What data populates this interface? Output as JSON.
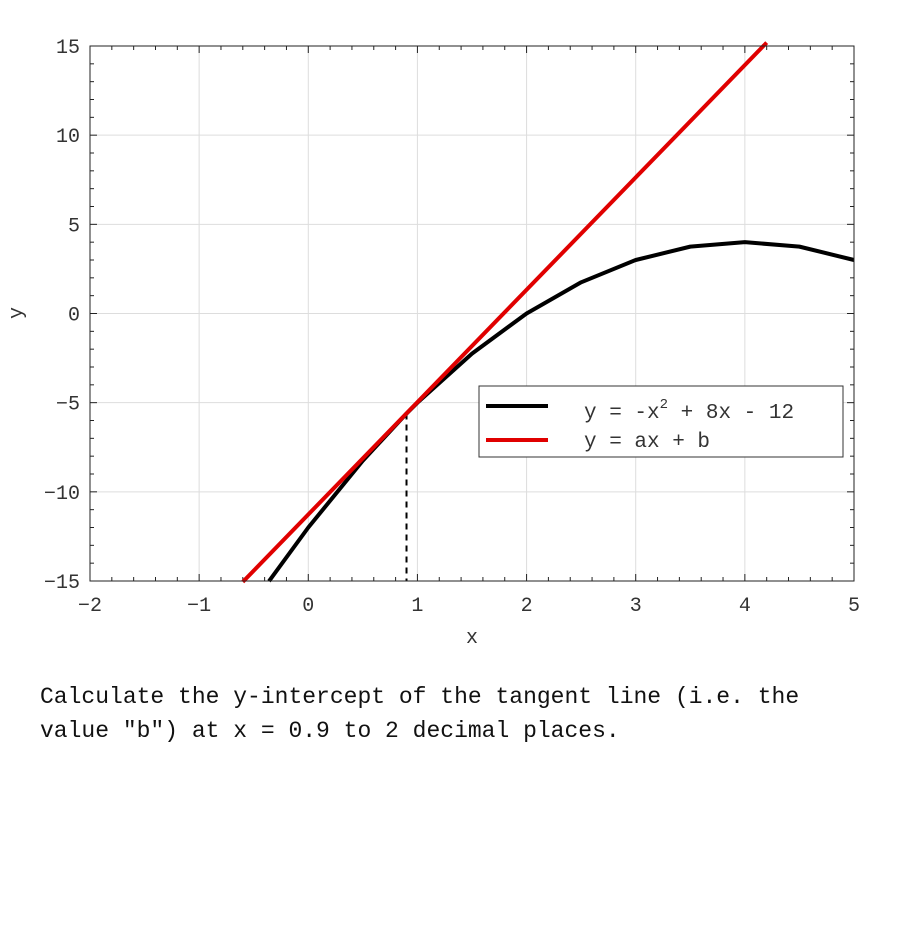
{
  "chart_data": {
    "type": "line",
    "xlabel": "x",
    "ylabel": "y",
    "xlim": [
      -2,
      5
    ],
    "ylim": [
      -15,
      15
    ],
    "xticks": [
      -2,
      -1,
      0,
      1,
      2,
      3,
      4,
      5
    ],
    "yticks": [
      -15,
      -10,
      -5,
      0,
      5,
      10,
      15
    ],
    "grid": true,
    "legend_position": "right",
    "tangent_point": {
      "x": 0.9,
      "y": -5.61
    },
    "series": [
      {
        "name": "y = -x^2 + 8x - 12",
        "name_parts": {
          "pre": "y = -x",
          "sup": "2",
          "post": " + 8x - 12"
        },
        "color": "#000000",
        "x": [
          -0.36,
          0,
          0.5,
          0.9,
          1,
          1.5,
          2,
          2.5,
          3,
          3.5,
          4,
          4.5,
          5
        ],
        "y": [
          -15.01,
          -12,
          -8.25,
          -5.61,
          -5,
          -2.25,
          0,
          1.75,
          3,
          3.75,
          4,
          3.75,
          3
        ]
      },
      {
        "name": "y = ax + b",
        "color": "#e00000",
        "x": [
          -0.6,
          4.2
        ],
        "y": [
          -15.05,
          15.19
        ]
      }
    ]
  },
  "question": "Calculate the y-intercept of the tangent line (i.e. the value \"b\") at x = 0.9 to 2 decimal places."
}
